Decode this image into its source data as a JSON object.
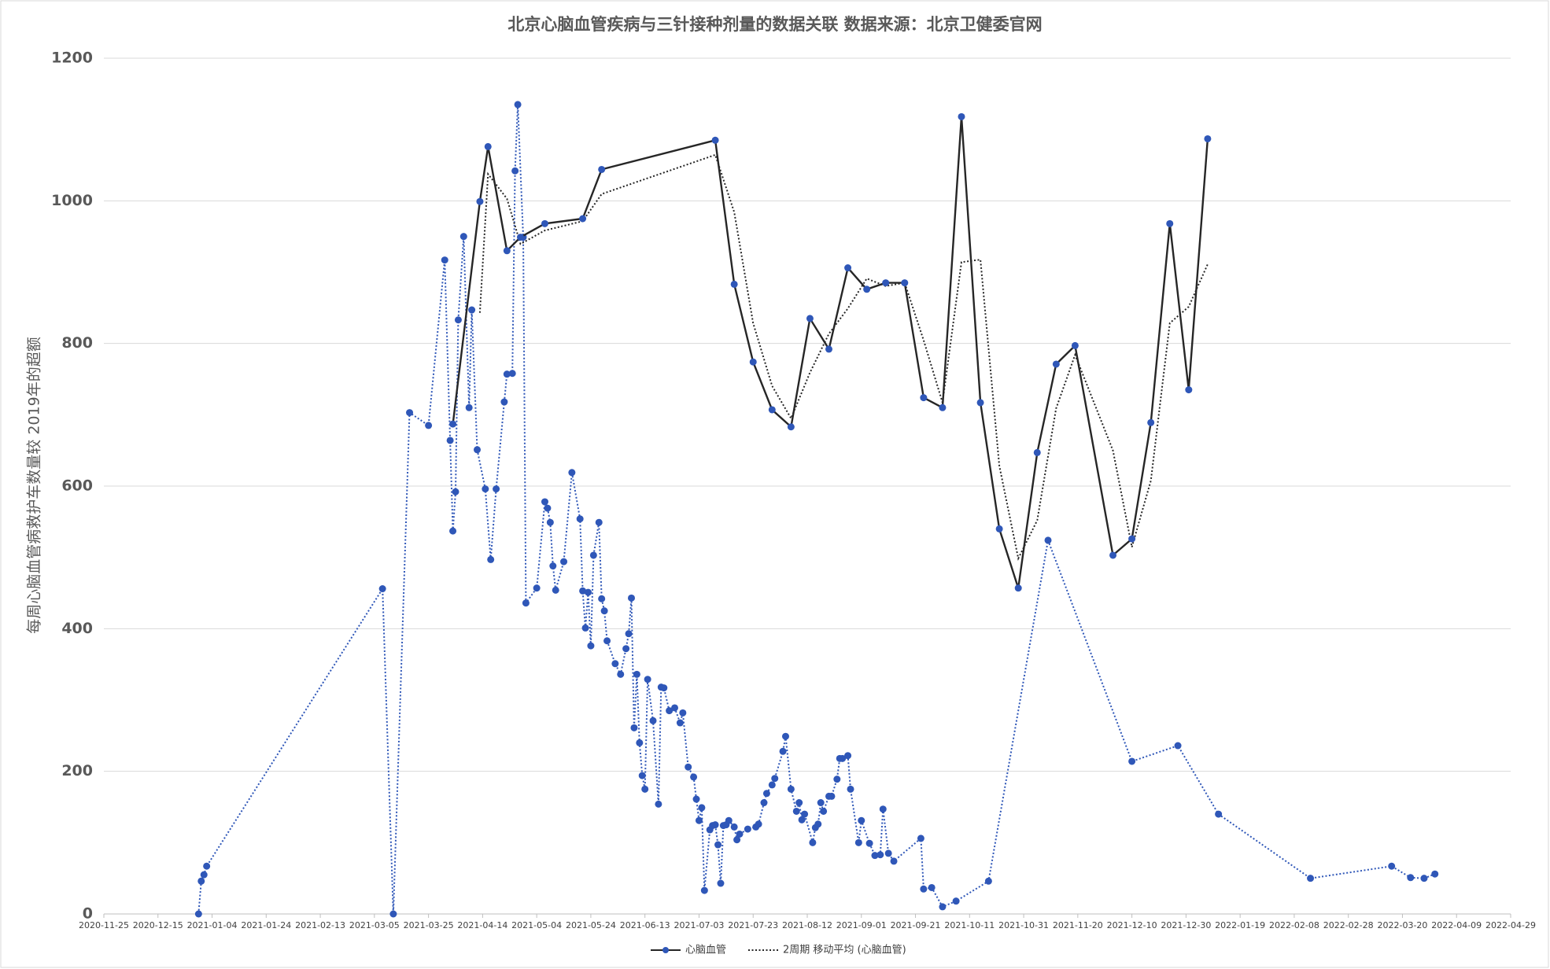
{
  "chart_data": {
    "type": "line",
    "title": "北京心脑血管疾病与三针接种剂量的数据关联  数据来源：北京卫健委官网",
    "y_label": "每周心脑血管病救护车数量较 2019年的超额",
    "xlim": [
      "2020-11-25",
      "2022-04-29"
    ],
    "xticks": [
      "2020-11-25",
      "2020-12-15",
      "2021-01-04",
      "2021-01-24",
      "2021-02-13",
      "2021-03-05",
      "2021-03-25",
      "2021-04-14",
      "2021-05-04",
      "2021-05-24",
      "2021-06-13",
      "2021-07-03",
      "2021-07-23",
      "2021-08-12",
      "2021-09-01",
      "2021-09-21",
      "2021-10-11",
      "2021-10-31",
      "2021-11-20",
      "2021-12-10",
      "2021-12-30",
      "2022-01-19",
      "2022-02-08",
      "2022-02-28",
      "2022-03-20",
      "2022-04-09",
      "2022-04-29"
    ],
    "ylim": [
      0,
      1200
    ],
    "yticks": [
      0,
      200,
      400,
      600,
      800,
      1000,
      1200
    ],
    "grid": true,
    "legend_position": "bottom",
    "series": [
      {
        "name": "心脑血管",
        "color": "#262626",
        "marker_color": "#2f57b8",
        "line_style": "solid",
        "marker": true,
        "legend": true,
        "x": [
          "2021-04-03",
          "2021-04-13",
          "2021-04-16",
          "2021-04-23",
          "2021-04-28",
          "2021-05-07",
          "2021-05-21",
          "2021-05-28",
          "2021-07-09",
          "2021-07-16",
          "2021-07-23",
          "2021-07-30",
          "2021-08-06",
          "2021-08-13",
          "2021-08-20",
          "2021-08-27",
          "2021-09-03",
          "2021-09-10",
          "2021-09-17",
          "2021-09-24",
          "2021-10-01",
          "2021-10-08",
          "2021-10-15",
          "2021-10-22",
          "2021-10-29",
          "2021-11-05",
          "2021-11-12",
          "2021-11-19",
          "2021-12-03",
          "2021-12-10",
          "2021-12-17",
          "2021-12-24",
          "2021-12-31",
          "2022-01-07"
        ],
        "values": [
          687,
          999,
          1076,
          930,
          949,
          968,
          975,
          1044,
          1085,
          883,
          774,
          707,
          683,
          835,
          792,
          906,
          876,
          885,
          885,
          724,
          710,
          1118,
          717,
          540,
          457,
          647,
          771,
          797,
          503,
          526,
          689,
          968,
          735,
          1087
        ]
      },
      {
        "name": "2周期 移动平均 (心脑血管)",
        "color": "#262626",
        "line_style": "dotted",
        "marker": false,
        "legend": true,
        "x": [
          "2021-04-03",
          "2021-04-13",
          "2021-04-16",
          "2021-04-23",
          "2021-04-28",
          "2021-05-07",
          "2021-05-21",
          "2021-05-28",
          "2021-07-09",
          "2021-07-16",
          "2021-07-23",
          "2021-07-30",
          "2021-08-06",
          "2021-08-13",
          "2021-08-20",
          "2021-08-27",
          "2021-09-03",
          "2021-09-10",
          "2021-09-17",
          "2021-09-24",
          "2021-10-01",
          "2021-10-08",
          "2021-10-15",
          "2021-10-22",
          "2021-10-29",
          "2021-11-05",
          "2021-11-12",
          "2021-11-19",
          "2021-12-03",
          "2021-12-10",
          "2021-12-17",
          "2021-12-24",
          "2021-12-31",
          "2022-01-07"
        ],
        "values": [
          null,
          843,
          1037.5,
          1003,
          939.5,
          958.5,
          971.5,
          1009.5,
          1064.5,
          984,
          828.5,
          740.5,
          695,
          759,
          813.5,
          849,
          891,
          880.5,
          885,
          804.5,
          717,
          914,
          917.5,
          628.5,
          498.5,
          552,
          709,
          784,
          650,
          514.5,
          607.5,
          828.5,
          851.5,
          911
        ]
      },
      {
        "color": "#2f57b8",
        "marker_color": "#2f57b8",
        "line_style": "dotted",
        "marker": true,
        "legend": false,
        "x": [
          "2020-12-30",
          "2020-12-31",
          "2021-01-01",
          "2021-01-02",
          "2021-03-08",
          "2021-03-12",
          "2021-03-18",
          "2021-03-25",
          "2021-03-31",
          "2021-04-02",
          "2021-04-03",
          "2021-04-04",
          "2021-04-05",
          "2021-04-07",
          "2021-04-09",
          "2021-04-10",
          "2021-04-12",
          "2021-04-15",
          "2021-04-17",
          "2021-04-19",
          "2021-04-22",
          "2021-04-23",
          "2021-04-25",
          "2021-04-26",
          "2021-04-27",
          "2021-04-29",
          "2021-04-30",
          "2021-05-04",
          "2021-05-07",
          "2021-05-08",
          "2021-05-09",
          "2021-05-10",
          "2021-05-11",
          "2021-05-14",
          "2021-05-17",
          "2021-05-20",
          "2021-05-21",
          "2021-05-22",
          "2021-05-23",
          "2021-05-24",
          "2021-05-25",
          "2021-05-27",
          "2021-05-28",
          "2021-05-29",
          "2021-05-30",
          "2021-06-02",
          "2021-06-04",
          "2021-06-06",
          "2021-06-07",
          "2021-06-08",
          "2021-06-09",
          "2021-06-10",
          "2021-06-11",
          "2021-06-12",
          "2021-06-13",
          "2021-06-14",
          "2021-06-16",
          "2021-06-18",
          "2021-06-19",
          "2021-06-20",
          "2021-06-22",
          "2021-06-24",
          "2021-06-26",
          "2021-06-27",
          "2021-06-29",
          "2021-07-01",
          "2021-07-02",
          "2021-07-03",
          "2021-07-04",
          "2021-07-05",
          "2021-07-07",
          "2021-07-08",
          "2021-07-09",
          "2021-07-10",
          "2021-07-11",
          "2021-07-12",
          "2021-07-13",
          "2021-07-14",
          "2021-07-16",
          "2021-07-17",
          "2021-07-18",
          "2021-07-21",
          "2021-07-24",
          "2021-07-25",
          "2021-07-27",
          "2021-07-28",
          "2021-07-30",
          "2021-07-31",
          "2021-08-03",
          "2021-08-04",
          "2021-08-06",
          "2021-08-08",
          "2021-08-09",
          "2021-08-10",
          "2021-08-11",
          "2021-08-14",
          "2021-08-15",
          "2021-08-16",
          "2021-08-17",
          "2021-08-18",
          "2021-08-20",
          "2021-08-21",
          "2021-08-23",
          "2021-08-24",
          "2021-08-25",
          "2021-08-27",
          "2021-08-28",
          "2021-08-31",
          "2021-09-01",
          "2021-09-04",
          "2021-09-06",
          "2021-09-08",
          "2021-09-09",
          "2021-09-11",
          "2021-09-13",
          "2021-09-23",
          "2021-09-24",
          "2021-09-27",
          "2021-10-01",
          "2021-10-06",
          "2021-10-18",
          "2021-11-09",
          "2021-12-10",
          "2021-12-27",
          "2022-01-11",
          "2022-02-14",
          "2022-03-16",
          "2022-03-23",
          "2022-03-28",
          "2022-04-01"
        ],
        "values": [
          0,
          46,
          55,
          67,
          456,
          0,
          703,
          685,
          917,
          664,
          537,
          592,
          833,
          950,
          710,
          847,
          651,
          596,
          497,
          596,
          718,
          757,
          758,
          1042,
          1135,
          949,
          436,
          457,
          578,
          569,
          549,
          488,
          454,
          494,
          619,
          554,
          453,
          401,
          451,
          376,
          503,
          549,
          442,
          425,
          383,
          351,
          336,
          372,
          393,
          443,
          261,
          336,
          240,
          194,
          175,
          329,
          271,
          154,
          318,
          317,
          285,
          289,
          268,
          282,
          206,
          192,
          161,
          131,
          149,
          33,
          118,
          124,
          125,
          97,
          43,
          124,
          125,
          131,
          122,
          104,
          112,
          119,
          122,
          126,
          156,
          169,
          181,
          190,
          228,
          249,
          175,
          144,
          156,
          132,
          140,
          100,
          121,
          126,
          156,
          144,
          165,
          165,
          189,
          218,
          218,
          222,
          175,
          100,
          131,
          99,
          82,
          83,
          147,
          85,
          74,
          106,
          35,
          37,
          10,
          18,
          46,
          524,
          214,
          236,
          140,
          50,
          67,
          51,
          50,
          56
        ]
      }
    ]
  }
}
